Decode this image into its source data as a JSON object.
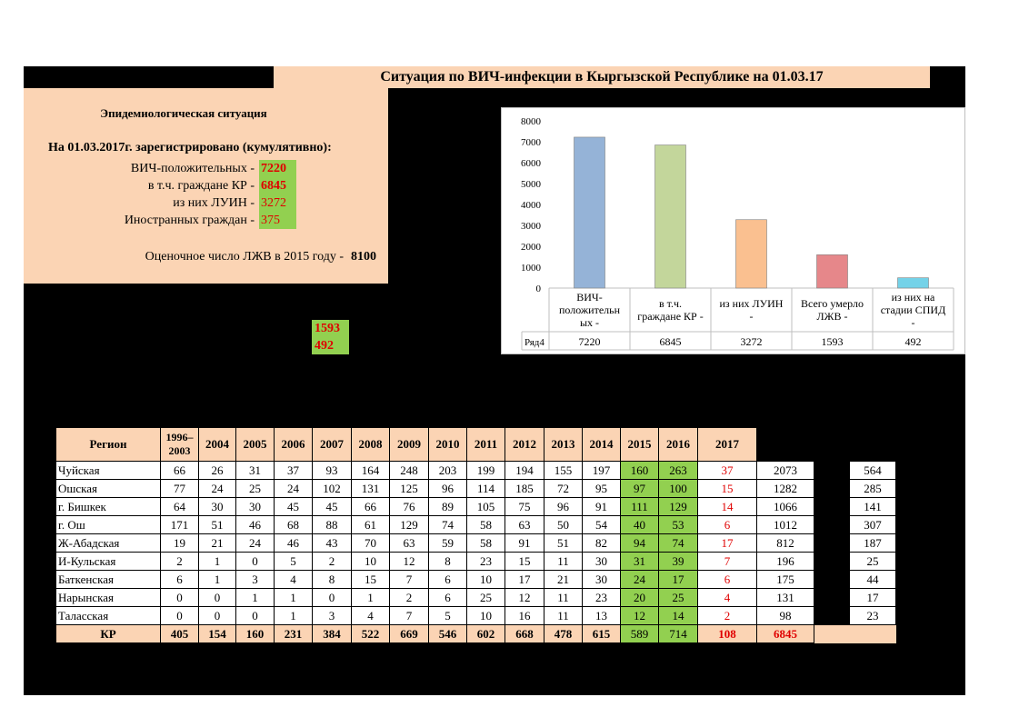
{
  "title": "Ситуация по ВИЧ-инфекции в Кыргызской Республике на 01.03.17",
  "epi": {
    "heading": "Эпидемиологическая ситуация",
    "subheading": "На 01.03.2017г. зарегистрировано (кумулятивно):",
    "rows": [
      {
        "label": "ВИЧ-положительных -",
        "value": "7220"
      },
      {
        "label": "в т.ч. граждане КР -",
        "value": "6845"
      },
      {
        "label": "из них ЛУИН -",
        "value": "3272"
      },
      {
        "label": "Иностранных граждан -",
        "value": "375"
      }
    ],
    "estimate_label": "Оценочное число ЛЖВ в 2015 году -",
    "estimate_value": "8100"
  },
  "side_boxes": [
    "1593",
    "492"
  ],
  "chart_data": {
    "type": "bar",
    "categories": [
      "ВИЧ-положительных -",
      "в т.ч. граждане КР -",
      "из них ЛУИН -",
      "Всего умерло ЛЖВ -",
      "из них на стадии СПИД -"
    ],
    "series": [
      {
        "name": "Ряд4",
        "values": [
          7220,
          6845,
          3272,
          1593,
          492
        ]
      }
    ],
    "ylim": [
      0,
      8000
    ],
    "yticks": [
      0,
      1000,
      2000,
      3000,
      4000,
      5000,
      6000,
      7000,
      8000
    ],
    "bar_colors": [
      "#95b3d7",
      "#c3d69b",
      "#fac090",
      "#e6878a",
      "#74d2e8"
    ],
    "legend": "data-table"
  },
  "table": {
    "region_header": "Регион",
    "years": [
      "1996–2003",
      "2004",
      "2005",
      "2006",
      "2007",
      "2008",
      "2009",
      "2010",
      "2011",
      "2012",
      "2013",
      "2014",
      "2015",
      "2016",
      "2017"
    ],
    "rows": [
      {
        "region": "Чуйская",
        "values": [
          "66",
          "26",
          "31",
          "37",
          "93",
          "164",
          "248",
          "203",
          "199",
          "194",
          "155",
          "197",
          "160",
          "263",
          "37"
        ],
        "total": "2073",
        "extra": "564"
      },
      {
        "region": "Ошская",
        "values": [
          "77",
          "24",
          "25",
          "24",
          "102",
          "131",
          "125",
          "96",
          "114",
          "185",
          "72",
          "95",
          "97",
          "100",
          "15"
        ],
        "total": "1282",
        "extra": "285"
      },
      {
        "region": "г. Бишкек",
        "values": [
          "64",
          "30",
          "30",
          "45",
          "45",
          "66",
          "76",
          "89",
          "105",
          "75",
          "96",
          "91",
          "111",
          "129",
          "14"
        ],
        "total": "1066",
        "extra": "141"
      },
      {
        "region": "г. Ош",
        "values": [
          "171",
          "51",
          "46",
          "68",
          "88",
          "61",
          "129",
          "74",
          "58",
          "63",
          "50",
          "54",
          "40",
          "53",
          "6"
        ],
        "total": "1012",
        "extra": "307"
      },
      {
        "region": "Ж-Абадская",
        "values": [
          "19",
          "21",
          "24",
          "46",
          "43",
          "70",
          "63",
          "59",
          "58",
          "91",
          "51",
          "82",
          "94",
          "74",
          "17"
        ],
        "total": "812",
        "extra": "187"
      },
      {
        "region": "И-Кульская",
        "values": [
          "2",
          "1",
          "0",
          "5",
          "2",
          "10",
          "12",
          "8",
          "23",
          "15",
          "11",
          "30",
          "31",
          "39",
          "7"
        ],
        "total": "196",
        "extra": "25"
      },
      {
        "region": "Баткенская",
        "values": [
          "6",
          "1",
          "3",
          "4",
          "8",
          "15",
          "7",
          "6",
          "10",
          "17",
          "21",
          "30",
          "24",
          "17",
          "6"
        ],
        "total": "175",
        "extra": "44"
      },
      {
        "region": "Нарынская",
        "values": [
          "0",
          "0",
          "1",
          "1",
          "0",
          "1",
          "2",
          "6",
          "25",
          "12",
          "11",
          "23",
          "20",
          "25",
          "4"
        ],
        "total": "131",
        "extra": "17"
      },
      {
        "region": "Таласская",
        "values": [
          "0",
          "0",
          "0",
          "1",
          "3",
          "4",
          "7",
          "5",
          "10",
          "16",
          "11",
          "13",
          "12",
          "14",
          "2"
        ],
        "total": "98",
        "extra": "23"
      }
    ],
    "total_row": {
      "region": "КР",
      "values": [
        "405",
        "154",
        "160",
        "231",
        "384",
        "522",
        "669",
        "546",
        "602",
        "668",
        "478",
        "615",
        "589",
        "714",
        "108"
      ],
      "total": "6845"
    }
  }
}
